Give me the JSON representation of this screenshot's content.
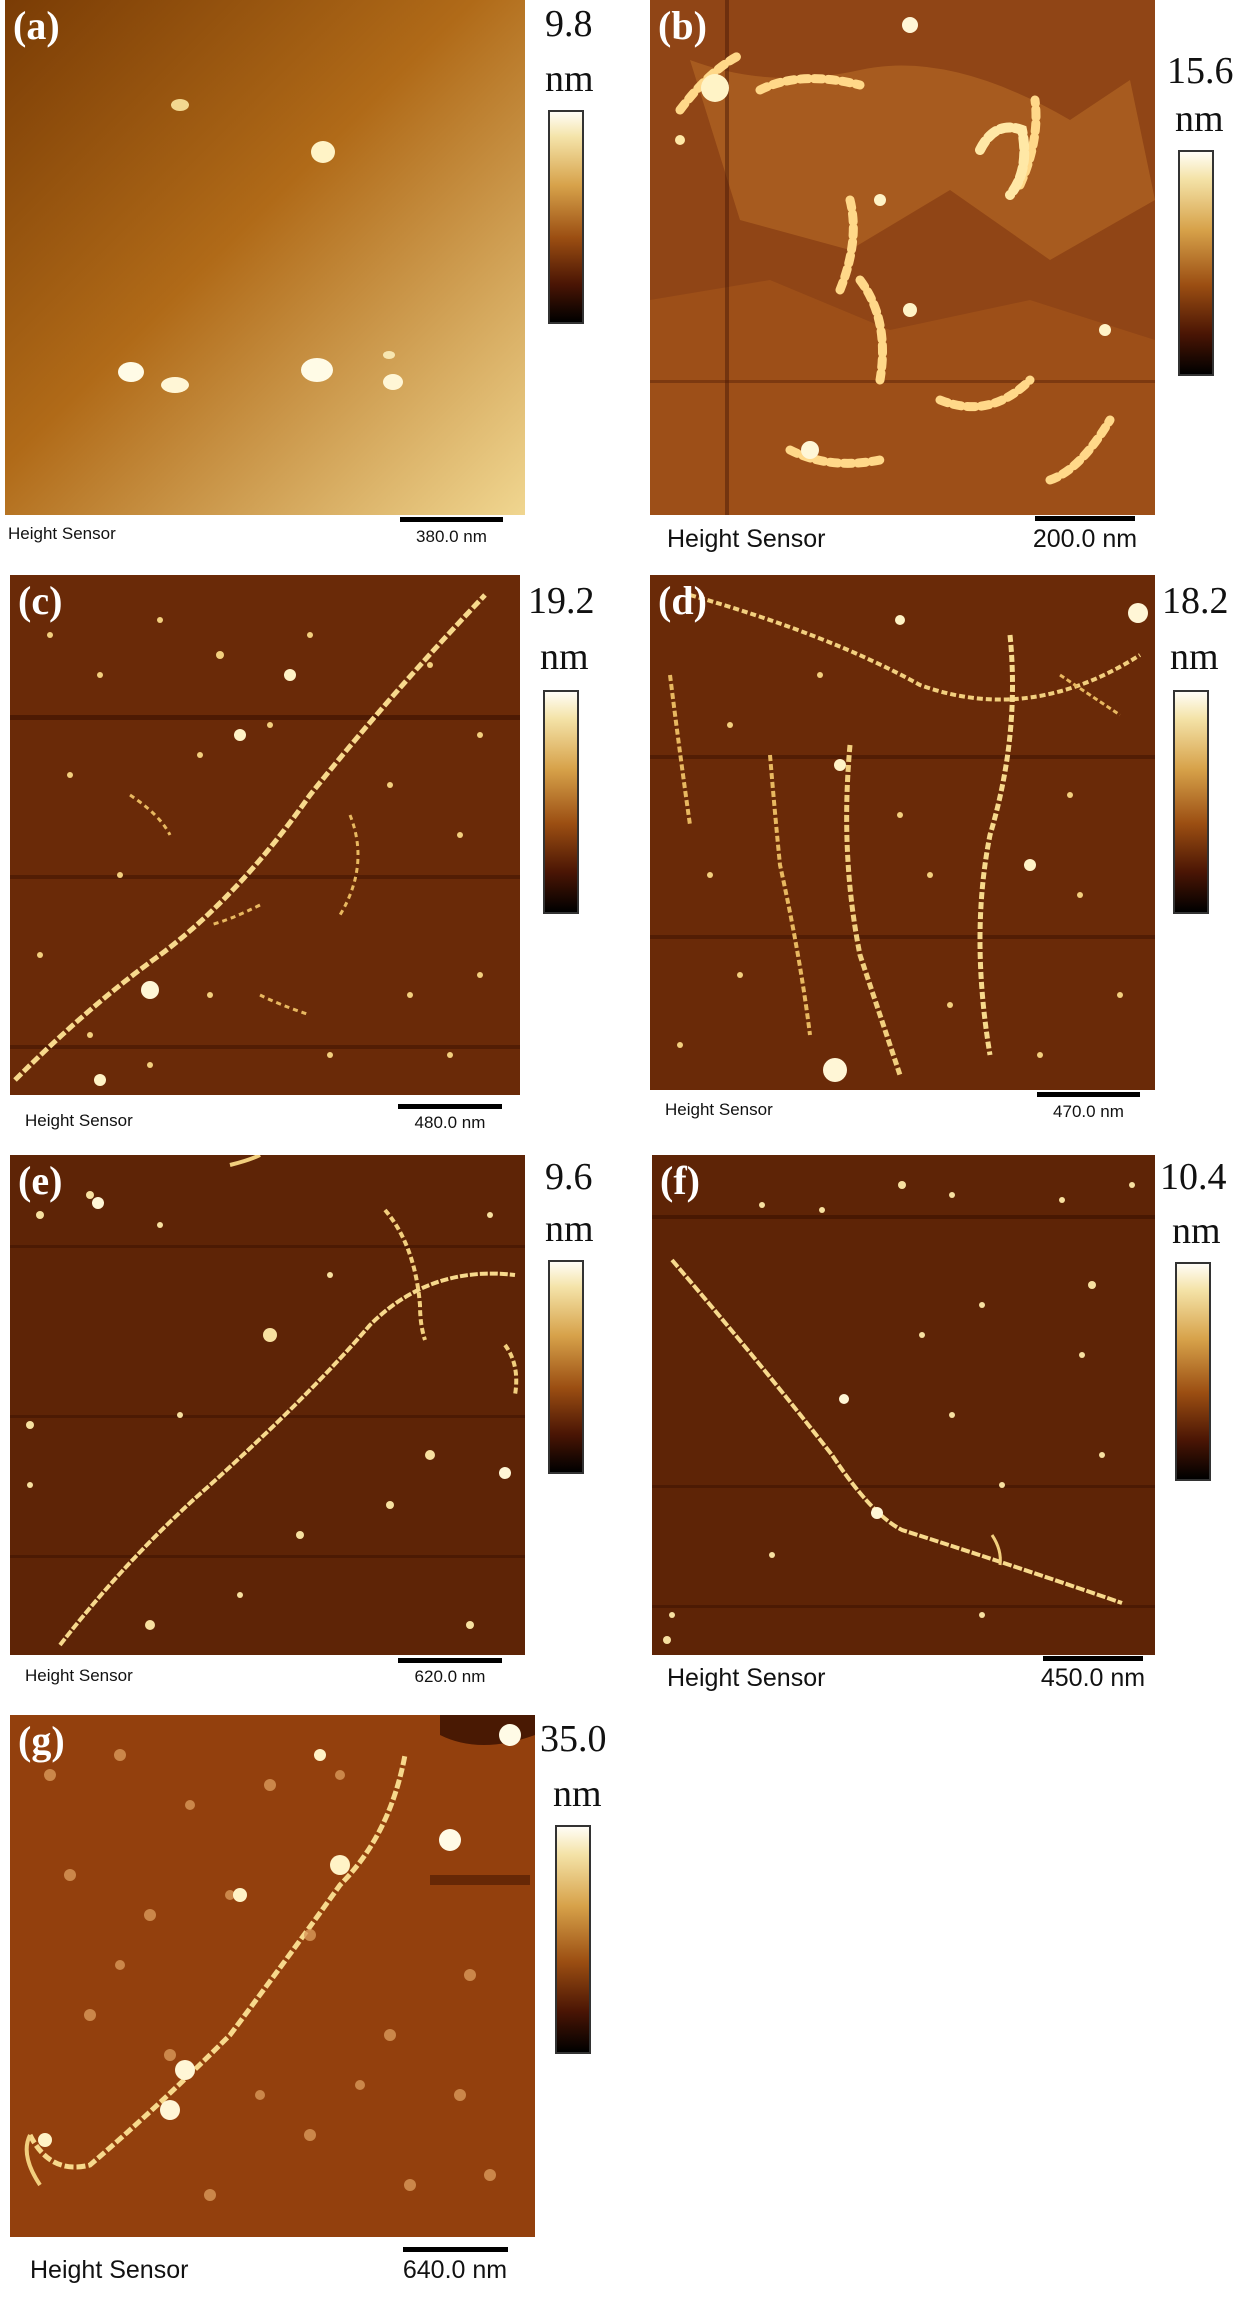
{
  "colors": {
    "afm_dark": "#3a1000",
    "afm_mid": "#8a3a0a",
    "afm_bright": "#fff4c8",
    "panel_a_background": "#c8902a"
  },
  "panels": [
    {
      "label": "(a)",
      "colorbar_max": "9.8",
      "colorbar_unit": "nm",
      "sensor": "Height Sensor",
      "scale": "380.0 nm"
    },
    {
      "label": "(b)",
      "colorbar_max": "15.6",
      "colorbar_unit": "nm",
      "sensor": "Height Sensor",
      "scale": "200.0 nm"
    },
    {
      "label": "(c)",
      "colorbar_max": "19.2",
      "colorbar_unit": "nm",
      "sensor": "Height Sensor",
      "scale": "480.0 nm"
    },
    {
      "label": "(d)",
      "colorbar_max": "18.2",
      "colorbar_unit": "nm",
      "sensor": "Height Sensor",
      "scale": "470.0 nm"
    },
    {
      "label": "(e)",
      "colorbar_max": "9.6",
      "colorbar_unit": "nm",
      "sensor": "Height Sensor",
      "scale": "620.0 nm"
    },
    {
      "label": "(f)",
      "colorbar_max": "10.4",
      "colorbar_unit": "nm",
      "sensor": "Height Sensor",
      "scale": "450.0 nm"
    },
    {
      "label": "(g)",
      "colorbar_max": "35.0",
      "colorbar_unit": "nm",
      "sensor": "Height Sensor",
      "scale": "640.0 nm"
    }
  ]
}
